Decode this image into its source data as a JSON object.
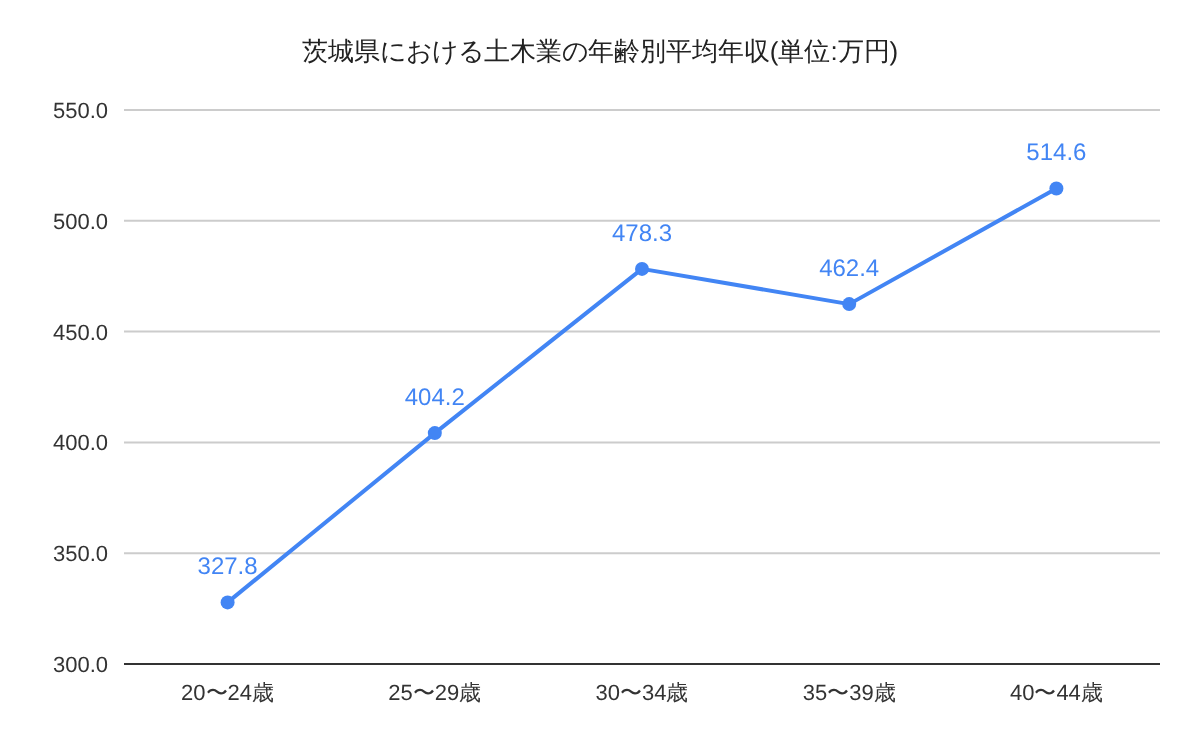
{
  "chart_data": {
    "type": "line",
    "title": "茨城県における土木業の年齢別平均年収(単位:万円)",
    "categories": [
      "20〜24歳",
      "25〜29歳",
      "30〜34歳",
      "35〜39歳",
      "40〜44歳"
    ],
    "series": [
      {
        "color": "#4285f4",
        "values": [
          327.8,
          404.2,
          478.3,
          462.4,
          514.6
        ]
      }
    ],
    "ylim": [
      300,
      550
    ],
    "yticks": [
      {
        "value": 300,
        "label": "300.0"
      },
      {
        "value": 350,
        "label": "350.0"
      },
      {
        "value": 400,
        "label": "400.0"
      },
      {
        "value": 450,
        "label": "450.0"
      },
      {
        "value": 500,
        "label": "500.0"
      },
      {
        "value": 550,
        "label": "550.0"
      }
    ],
    "grid": "y",
    "marker": "circle",
    "data_labels": true
  }
}
